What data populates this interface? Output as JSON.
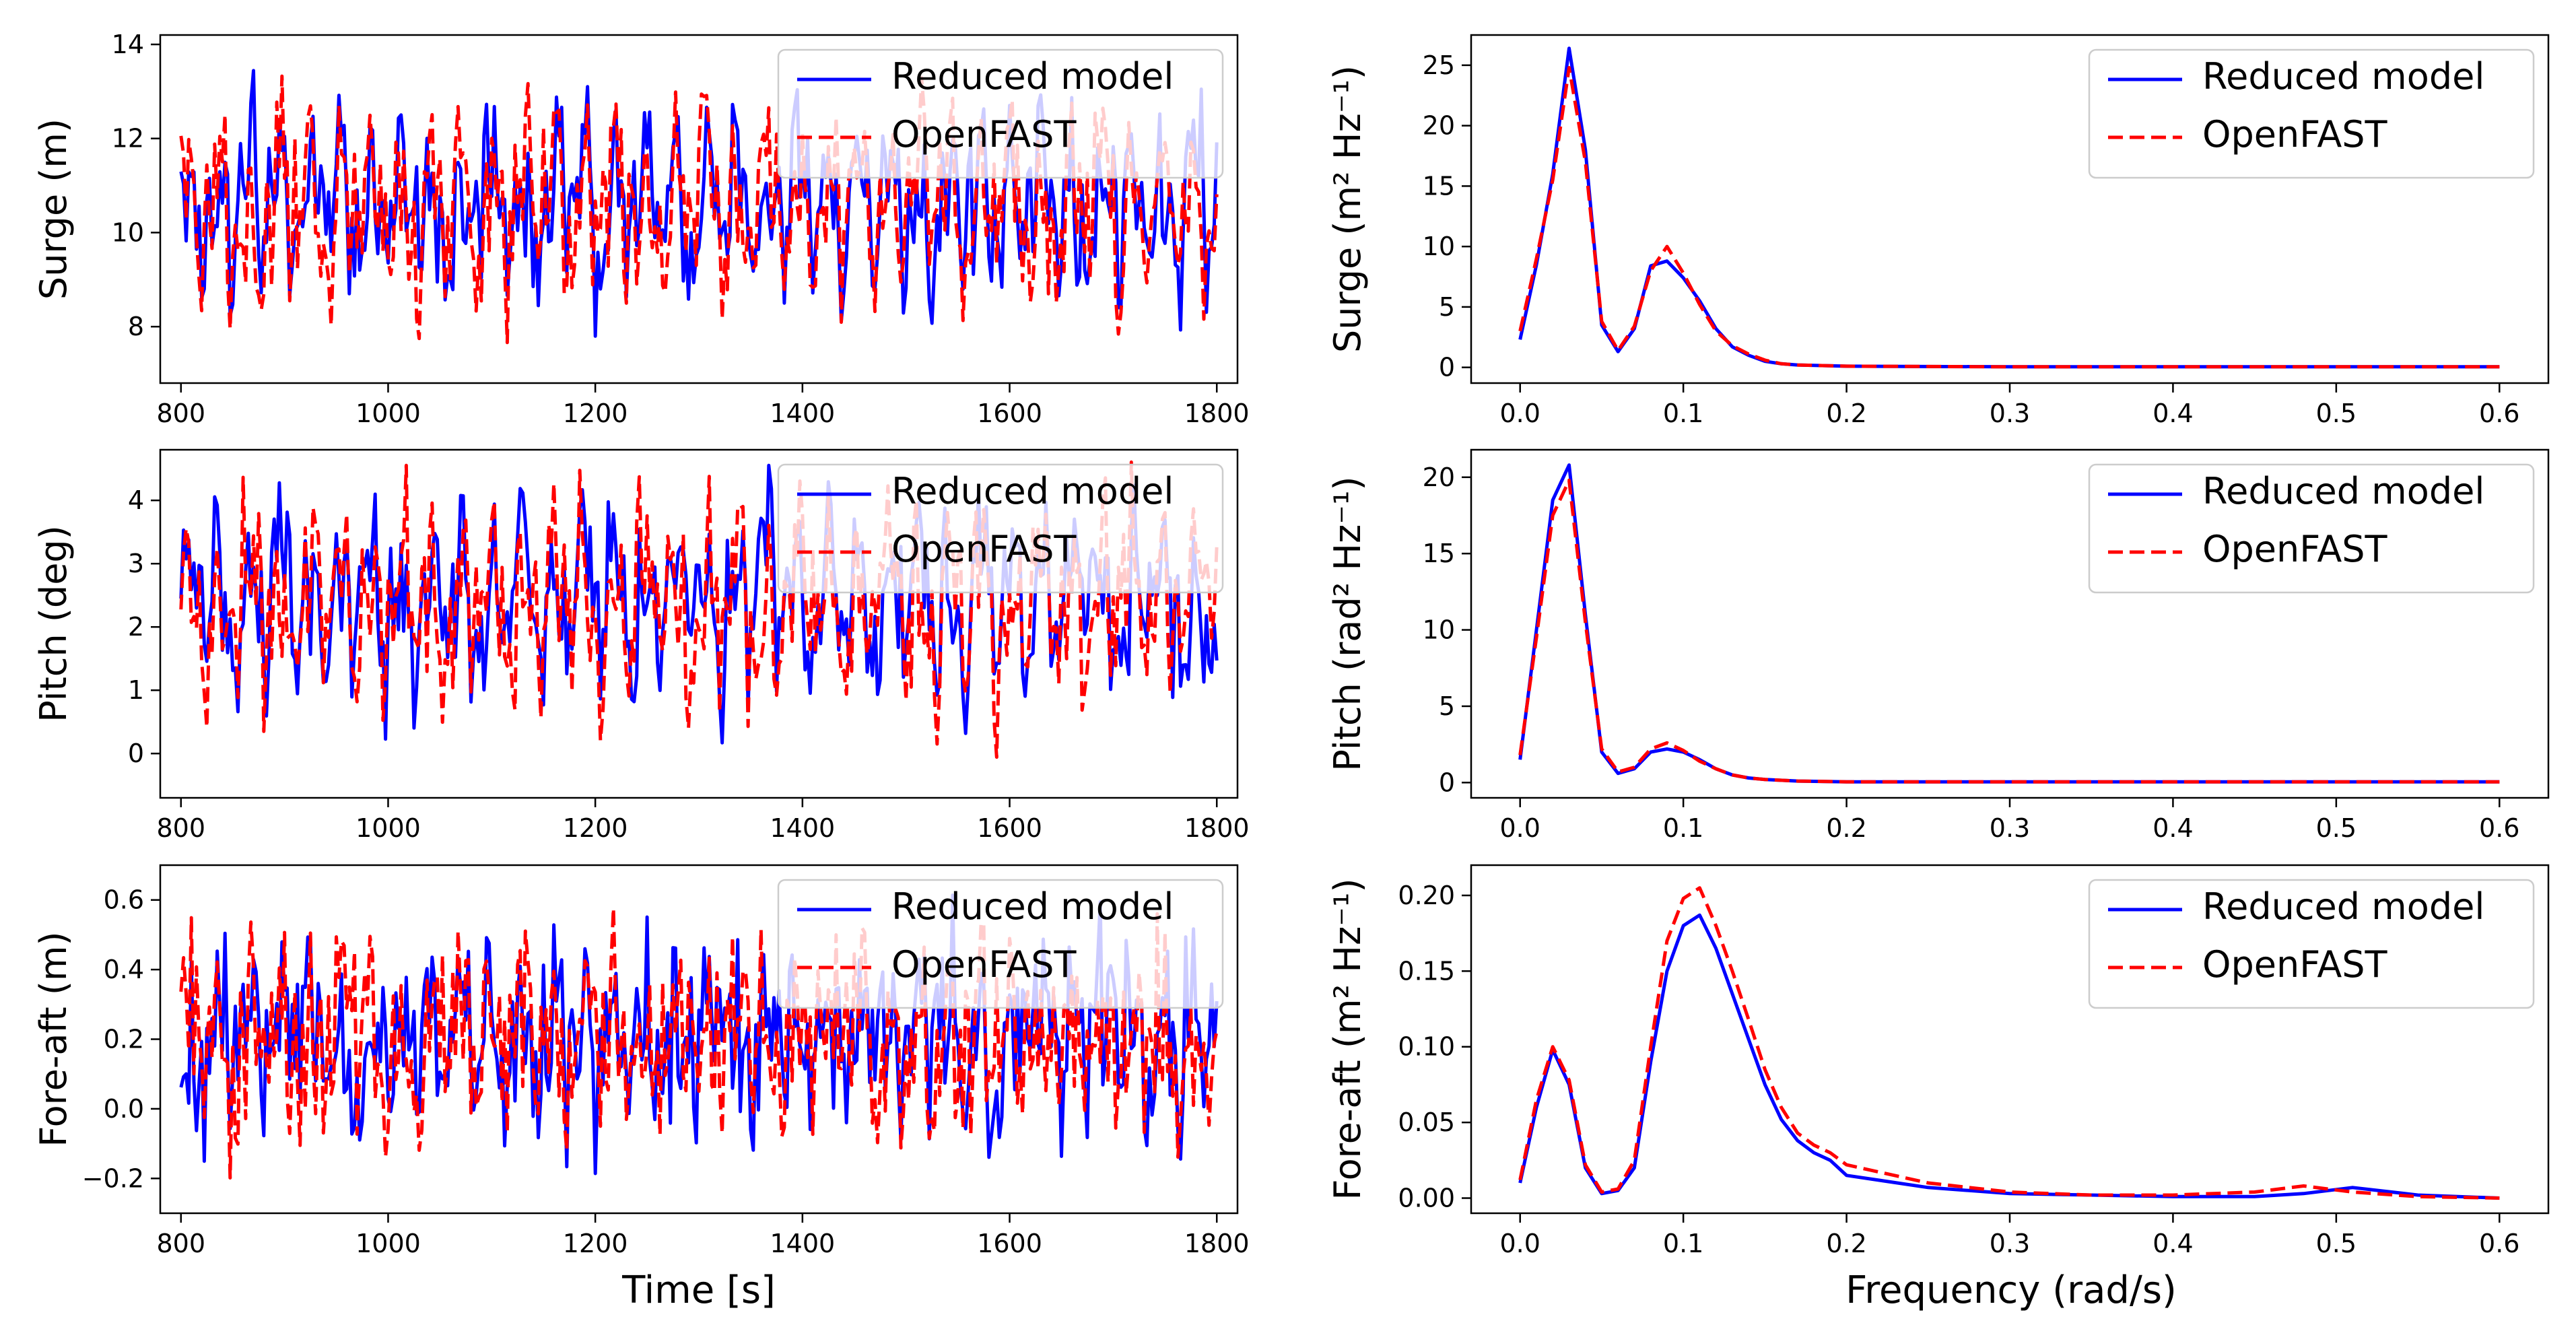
{
  "figure": {
    "legend_labels": [
      "Reduced model",
      "OpenFAST"
    ],
    "x_label_left": "Time [s]",
    "x_label_right": "Frequency (rad/s)"
  },
  "colors": {
    "reduced": "#0000ff",
    "openfast": "#ff0000"
  },
  "chart_data": [
    {
      "id": "surge_time",
      "type": "line",
      "ylabel": "Surge (m)",
      "xlabel": "",
      "xlim": [
        780,
        1820
      ],
      "ylim": [
        6.8,
        14.2
      ],
      "xticks": [
        800,
        1000,
        1200,
        1400,
        1600,
        1800
      ],
      "yticks": [
        8,
        10,
        12,
        14
      ],
      "legend": "top-right",
      "series": [
        {
          "name": "Reduced model",
          "style": "solid",
          "x": [
            800,
            1800
          ],
          "y": [
            10.6,
            10.6
          ]
        },
        {
          "name": "OpenFAST",
          "style": "dashed",
          "x": [
            800,
            1800
          ],
          "y": [
            10.6,
            10.6
          ]
        }
      ]
    },
    {
      "id": "surge_psd",
      "type": "line",
      "ylabel": "Surge (m² Hz⁻¹)",
      "xlabel": "",
      "xlim": [
        -0.03,
        0.63
      ],
      "ylim": [
        -1.3,
        27.5
      ],
      "xticks": [
        0.0,
        0.1,
        0.2,
        0.3,
        0.4,
        0.5,
        0.6
      ],
      "yticks": [
        0,
        5,
        10,
        15,
        20,
        25
      ],
      "legend": "top-right",
      "series": [
        {
          "name": "Reduced model",
          "style": "solid",
          "x": [
            0,
            0.01,
            0.02,
            0.03,
            0.04,
            0.05,
            0.06,
            0.07,
            0.08,
            0.09,
            0.1,
            0.11,
            0.12,
            0.13,
            0.14,
            0.15,
            0.16,
            0.17,
            0.2,
            0.3,
            0.4,
            0.5,
            0.6
          ],
          "y": [
            2.3,
            8.5,
            16,
            26.4,
            18,
            3.5,
            1.3,
            3.2,
            8.4,
            8.8,
            7.4,
            5.5,
            3.2,
            1.7,
            1.0,
            0.5,
            0.3,
            0.2,
            0.1,
            0.05,
            0.05,
            0.05,
            0.05
          ]
        },
        {
          "name": "OpenFAST",
          "style": "dashed",
          "x": [
            0,
            0.01,
            0.02,
            0.03,
            0.04,
            0.05,
            0.06,
            0.07,
            0.08,
            0.09,
            0.1,
            0.11,
            0.12,
            0.13,
            0.14,
            0.15,
            0.16,
            0.17,
            0.2,
            0.3,
            0.4,
            0.5,
            0.6
          ],
          "y": [
            3.0,
            9.0,
            15.5,
            24.8,
            17,
            3.8,
            1.4,
            3.4,
            8.0,
            10.0,
            7.8,
            5.2,
            3.0,
            1.8,
            1.1,
            0.6,
            0.3,
            0.2,
            0.1,
            0.05,
            0.05,
            0.05,
            0.05
          ]
        }
      ]
    },
    {
      "id": "pitch_time",
      "type": "line",
      "ylabel": "Pitch (deg)",
      "xlabel": "",
      "xlim": [
        780,
        1820
      ],
      "ylim": [
        -0.7,
        4.8
      ],
      "xticks": [
        800,
        1000,
        1200,
        1400,
        1600,
        1800
      ],
      "yticks": [
        0,
        1,
        2,
        3,
        4
      ],
      "legend": "top-right",
      "series": [
        {
          "name": "Reduced model",
          "style": "solid",
          "x": [
            800,
            1800
          ],
          "y": [
            2.4,
            2.4
          ]
        },
        {
          "name": "OpenFAST",
          "style": "dashed",
          "x": [
            800,
            1800
          ],
          "y": [
            2.4,
            2.4
          ]
        }
      ]
    },
    {
      "id": "pitch_psd",
      "type": "line",
      "ylabel": "Pitch (rad² Hz⁻¹)",
      "xlabel": "",
      "xlim": [
        -0.03,
        0.63
      ],
      "ylim": [
        -1.0,
        21.8
      ],
      "xticks": [
        0.0,
        0.1,
        0.2,
        0.3,
        0.4,
        0.5,
        0.6
      ],
      "yticks": [
        0,
        5,
        10,
        15,
        20
      ],
      "legend": "top-right",
      "series": [
        {
          "name": "Reduced model",
          "style": "solid",
          "x": [
            0,
            0.01,
            0.02,
            0.03,
            0.04,
            0.05,
            0.06,
            0.07,
            0.08,
            0.09,
            0.1,
            0.11,
            0.12,
            0.13,
            0.14,
            0.15,
            0.17,
            0.2,
            0.3,
            0.4,
            0.5,
            0.6
          ],
          "y": [
            1.5,
            10,
            18.5,
            20.8,
            11,
            2.0,
            0.6,
            0.9,
            2.0,
            2.2,
            2.0,
            1.5,
            0.9,
            0.5,
            0.3,
            0.2,
            0.1,
            0.05,
            0.05,
            0.05,
            0.05,
            0.05
          ]
        },
        {
          "name": "OpenFAST",
          "style": "dashed",
          "x": [
            0,
            0.01,
            0.02,
            0.03,
            0.04,
            0.05,
            0.06,
            0.07,
            0.08,
            0.09,
            0.1,
            0.11,
            0.12,
            0.13,
            0.14,
            0.15,
            0.17,
            0.2,
            0.3,
            0.4,
            0.5,
            0.6
          ],
          "y": [
            1.8,
            9.5,
            17.5,
            19.8,
            10.5,
            2.2,
            0.7,
            1.0,
            2.2,
            2.6,
            2.1,
            1.4,
            0.9,
            0.5,
            0.3,
            0.2,
            0.1,
            0.05,
            0.05,
            0.05,
            0.05,
            0.05
          ]
        }
      ]
    },
    {
      "id": "foreaft_time",
      "type": "line",
      "ylabel": "Fore-aft (m)",
      "xlabel": "Time [s]",
      "xlim": [
        780,
        1820
      ],
      "ylim": [
        -0.3,
        0.7
      ],
      "xticks": [
        800,
        1000,
        1200,
        1400,
        1600,
        1800
      ],
      "yticks": [
        -0.2,
        0.0,
        0.2,
        0.4,
        0.6
      ],
      "legend": "top-right",
      "series": [
        {
          "name": "Reduced model",
          "style": "solid",
          "x": [
            800,
            1800
          ],
          "y": [
            0.2,
            0.2
          ]
        },
        {
          "name": "OpenFAST",
          "style": "dashed",
          "x": [
            800,
            1800
          ],
          "y": [
            0.2,
            0.2
          ]
        }
      ]
    },
    {
      "id": "foreaft_psd",
      "type": "line",
      "ylabel": "Fore-aft (m² Hz⁻¹)",
      "xlabel": "Frequency (rad/s)",
      "xlim": [
        -0.03,
        0.63
      ],
      "ylim": [
        -0.01,
        0.22
      ],
      "xticks": [
        0.0,
        0.1,
        0.2,
        0.3,
        0.4,
        0.5,
        0.6
      ],
      "yticks": [
        0.0,
        0.05,
        0.1,
        0.15,
        0.2
      ],
      "legend": "top-right",
      "series": [
        {
          "name": "Reduced model",
          "style": "solid",
          "x": [
            0,
            0.01,
            0.02,
            0.03,
            0.04,
            0.05,
            0.06,
            0.07,
            0.08,
            0.09,
            0.1,
            0.11,
            0.12,
            0.13,
            0.14,
            0.15,
            0.16,
            0.17,
            0.18,
            0.19,
            0.2,
            0.25,
            0.3,
            0.35,
            0.4,
            0.45,
            0.48,
            0.51,
            0.55,
            0.6
          ],
          "y": [
            0.01,
            0.06,
            0.098,
            0.075,
            0.02,
            0.003,
            0.005,
            0.02,
            0.09,
            0.15,
            0.18,
            0.187,
            0.165,
            0.135,
            0.105,
            0.075,
            0.052,
            0.038,
            0.03,
            0.025,
            0.015,
            0.007,
            0.003,
            0.002,
            0.001,
            0.001,
            0.003,
            0.007,
            0.002,
            0.0
          ]
        },
        {
          "name": "OpenFAST",
          "style": "dashed",
          "x": [
            0,
            0.01,
            0.02,
            0.03,
            0.04,
            0.05,
            0.06,
            0.07,
            0.08,
            0.09,
            0.1,
            0.11,
            0.12,
            0.13,
            0.14,
            0.15,
            0.16,
            0.17,
            0.18,
            0.19,
            0.2,
            0.25,
            0.3,
            0.35,
            0.4,
            0.45,
            0.48,
            0.51,
            0.55,
            0.6
          ],
          "y": [
            0.012,
            0.065,
            0.1,
            0.078,
            0.022,
            0.004,
            0.006,
            0.025,
            0.1,
            0.17,
            0.198,
            0.205,
            0.18,
            0.15,
            0.118,
            0.085,
            0.06,
            0.043,
            0.035,
            0.03,
            0.022,
            0.01,
            0.004,
            0.002,
            0.002,
            0.004,
            0.008,
            0.004,
            0.001,
            0.0
          ]
        }
      ]
    }
  ]
}
